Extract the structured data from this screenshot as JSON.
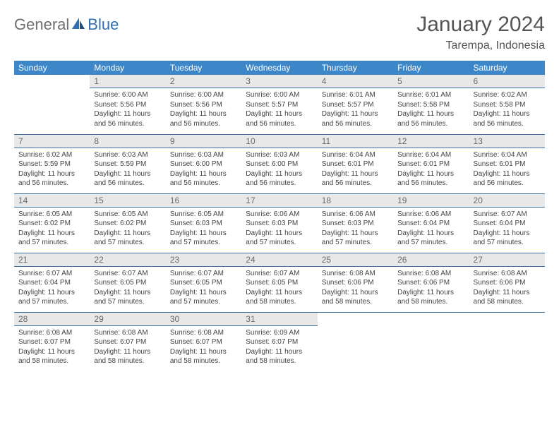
{
  "brand": {
    "part1": "General",
    "part2": "Blue"
  },
  "title": "January 2024",
  "location": "Tarempa, Indonesia",
  "colors": {
    "header_bg": "#3d87c9",
    "header_fg": "#ffffff",
    "daynum_bg": "#e8e8e8",
    "daynum_fg": "#6a6a6a",
    "rule": "#3d6f9f",
    "logo_gray": "#6f6f6f",
    "logo_blue": "#2f6fb3"
  },
  "day_labels": [
    "Sunday",
    "Monday",
    "Tuesday",
    "Wednesday",
    "Thursday",
    "Friday",
    "Saturday"
  ],
  "weeks": [
    [
      {
        "n": "",
        "sr": "",
        "ss": "",
        "dl": ""
      },
      {
        "n": "1",
        "sr": "Sunrise: 6:00 AM",
        "ss": "Sunset: 5:56 PM",
        "dl": "Daylight: 11 hours and 56 minutes."
      },
      {
        "n": "2",
        "sr": "Sunrise: 6:00 AM",
        "ss": "Sunset: 5:56 PM",
        "dl": "Daylight: 11 hours and 56 minutes."
      },
      {
        "n": "3",
        "sr": "Sunrise: 6:00 AM",
        "ss": "Sunset: 5:57 PM",
        "dl": "Daylight: 11 hours and 56 minutes."
      },
      {
        "n": "4",
        "sr": "Sunrise: 6:01 AM",
        "ss": "Sunset: 5:57 PM",
        "dl": "Daylight: 11 hours and 56 minutes."
      },
      {
        "n": "5",
        "sr": "Sunrise: 6:01 AM",
        "ss": "Sunset: 5:58 PM",
        "dl": "Daylight: 11 hours and 56 minutes."
      },
      {
        "n": "6",
        "sr": "Sunrise: 6:02 AM",
        "ss": "Sunset: 5:58 PM",
        "dl": "Daylight: 11 hours and 56 minutes."
      }
    ],
    [
      {
        "n": "7",
        "sr": "Sunrise: 6:02 AM",
        "ss": "Sunset: 5:59 PM",
        "dl": "Daylight: 11 hours and 56 minutes."
      },
      {
        "n": "8",
        "sr": "Sunrise: 6:03 AM",
        "ss": "Sunset: 5:59 PM",
        "dl": "Daylight: 11 hours and 56 minutes."
      },
      {
        "n": "9",
        "sr": "Sunrise: 6:03 AM",
        "ss": "Sunset: 6:00 PM",
        "dl": "Daylight: 11 hours and 56 minutes."
      },
      {
        "n": "10",
        "sr": "Sunrise: 6:03 AM",
        "ss": "Sunset: 6:00 PM",
        "dl": "Daylight: 11 hours and 56 minutes."
      },
      {
        "n": "11",
        "sr": "Sunrise: 6:04 AM",
        "ss": "Sunset: 6:01 PM",
        "dl": "Daylight: 11 hours and 56 minutes."
      },
      {
        "n": "12",
        "sr": "Sunrise: 6:04 AM",
        "ss": "Sunset: 6:01 PM",
        "dl": "Daylight: 11 hours and 56 minutes."
      },
      {
        "n": "13",
        "sr": "Sunrise: 6:04 AM",
        "ss": "Sunset: 6:01 PM",
        "dl": "Daylight: 11 hours and 56 minutes."
      }
    ],
    [
      {
        "n": "14",
        "sr": "Sunrise: 6:05 AM",
        "ss": "Sunset: 6:02 PM",
        "dl": "Daylight: 11 hours and 57 minutes."
      },
      {
        "n": "15",
        "sr": "Sunrise: 6:05 AM",
        "ss": "Sunset: 6:02 PM",
        "dl": "Daylight: 11 hours and 57 minutes."
      },
      {
        "n": "16",
        "sr": "Sunrise: 6:05 AM",
        "ss": "Sunset: 6:03 PM",
        "dl": "Daylight: 11 hours and 57 minutes."
      },
      {
        "n": "17",
        "sr": "Sunrise: 6:06 AM",
        "ss": "Sunset: 6:03 PM",
        "dl": "Daylight: 11 hours and 57 minutes."
      },
      {
        "n": "18",
        "sr": "Sunrise: 6:06 AM",
        "ss": "Sunset: 6:03 PM",
        "dl": "Daylight: 11 hours and 57 minutes."
      },
      {
        "n": "19",
        "sr": "Sunrise: 6:06 AM",
        "ss": "Sunset: 6:04 PM",
        "dl": "Daylight: 11 hours and 57 minutes."
      },
      {
        "n": "20",
        "sr": "Sunrise: 6:07 AM",
        "ss": "Sunset: 6:04 PM",
        "dl": "Daylight: 11 hours and 57 minutes."
      }
    ],
    [
      {
        "n": "21",
        "sr": "Sunrise: 6:07 AM",
        "ss": "Sunset: 6:04 PM",
        "dl": "Daylight: 11 hours and 57 minutes."
      },
      {
        "n": "22",
        "sr": "Sunrise: 6:07 AM",
        "ss": "Sunset: 6:05 PM",
        "dl": "Daylight: 11 hours and 57 minutes."
      },
      {
        "n": "23",
        "sr": "Sunrise: 6:07 AM",
        "ss": "Sunset: 6:05 PM",
        "dl": "Daylight: 11 hours and 57 minutes."
      },
      {
        "n": "24",
        "sr": "Sunrise: 6:07 AM",
        "ss": "Sunset: 6:05 PM",
        "dl": "Daylight: 11 hours and 58 minutes."
      },
      {
        "n": "25",
        "sr": "Sunrise: 6:08 AM",
        "ss": "Sunset: 6:06 PM",
        "dl": "Daylight: 11 hours and 58 minutes."
      },
      {
        "n": "26",
        "sr": "Sunrise: 6:08 AM",
        "ss": "Sunset: 6:06 PM",
        "dl": "Daylight: 11 hours and 58 minutes."
      },
      {
        "n": "27",
        "sr": "Sunrise: 6:08 AM",
        "ss": "Sunset: 6:06 PM",
        "dl": "Daylight: 11 hours and 58 minutes."
      }
    ],
    [
      {
        "n": "28",
        "sr": "Sunrise: 6:08 AM",
        "ss": "Sunset: 6:07 PM",
        "dl": "Daylight: 11 hours and 58 minutes."
      },
      {
        "n": "29",
        "sr": "Sunrise: 6:08 AM",
        "ss": "Sunset: 6:07 PM",
        "dl": "Daylight: 11 hours and 58 minutes."
      },
      {
        "n": "30",
        "sr": "Sunrise: 6:08 AM",
        "ss": "Sunset: 6:07 PM",
        "dl": "Daylight: 11 hours and 58 minutes."
      },
      {
        "n": "31",
        "sr": "Sunrise: 6:09 AM",
        "ss": "Sunset: 6:07 PM",
        "dl": "Daylight: 11 hours and 58 minutes."
      },
      {
        "n": "",
        "sr": "",
        "ss": "",
        "dl": ""
      },
      {
        "n": "",
        "sr": "",
        "ss": "",
        "dl": ""
      },
      {
        "n": "",
        "sr": "",
        "ss": "",
        "dl": ""
      }
    ]
  ]
}
